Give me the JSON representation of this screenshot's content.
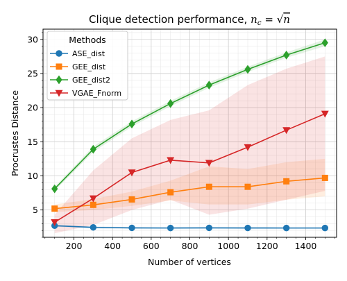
{
  "chart_data": {
    "type": "line",
    "title": "Clique detection performance, ",
    "title_math": {
      "var": "n",
      "sub": "c",
      "eq": " = √",
      "arg": "n"
    },
    "xlabel": "Number of vertices",
    "ylabel": "Procrustes Distance",
    "xlim": [
      40,
      1560
    ],
    "ylim": [
      1.0,
      31.5
    ],
    "x_major_ticks": [
      200,
      400,
      600,
      800,
      1000,
      1200,
      1400
    ],
    "x_tick_labels": [
      "200",
      "400",
      "600",
      "800",
      "1000",
      "1200",
      "1400"
    ],
    "y_major_ticks": [
      5,
      10,
      15,
      20,
      25,
      30
    ],
    "y_tick_labels": [
      "5",
      "10",
      "15",
      "20",
      "25",
      "30"
    ],
    "x_minor_step": 50,
    "y_minor_step": 1,
    "grid": true,
    "legend_title": "Methods",
    "legend_position": "upper-left",
    "x": [
      100,
      300,
      500,
      700,
      900,
      1100,
      1300,
      1500
    ],
    "series": [
      {
        "name": "ASE_dist",
        "color": "#1f77b4",
        "marker": "circle",
        "values": [
          2.7,
          2.45,
          2.38,
          2.36,
          2.38,
          2.37,
          2.36,
          2.36
        ],
        "band_low": [
          2.55,
          2.3,
          2.25,
          2.25,
          2.26,
          2.25,
          2.25,
          2.25
        ],
        "band_high": [
          2.85,
          2.6,
          2.5,
          2.48,
          2.5,
          2.49,
          2.48,
          2.48
        ]
      },
      {
        "name": "GEE_dist",
        "color": "#ff7f0e",
        "marker": "square",
        "values": [
          5.2,
          5.75,
          6.55,
          7.6,
          8.4,
          8.4,
          9.2,
          9.7
        ],
        "band_low": [
          4.7,
          5.0,
          5.6,
          6.4,
          5.8,
          5.8,
          6.5,
          7.0
        ],
        "band_high": [
          5.8,
          6.6,
          7.7,
          9.3,
          11.4,
          11.0,
          12.0,
          12.5
        ]
      },
      {
        "name": "GEE_dist2",
        "color": "#2ca02c",
        "marker": "diamond",
        "values": [
          8.1,
          13.9,
          17.6,
          20.6,
          23.3,
          25.6,
          27.7,
          29.5
        ],
        "band_low": [
          7.8,
          13.5,
          17.2,
          20.2,
          22.9,
          25.2,
          27.3,
          29.0
        ],
        "band_high": [
          8.4,
          14.3,
          18.0,
          21.0,
          23.7,
          26.0,
          28.1,
          30.0
        ]
      },
      {
        "name": "VGAE_Fnorm",
        "color": "#d62728",
        "marker": "triangle-down",
        "values": [
          3.2,
          6.7,
          10.5,
          12.3,
          11.9,
          14.2,
          16.7,
          19.1
        ],
        "band_low": [
          1.6,
          2.8,
          5.0,
          6.5,
          4.3,
          5.2,
          6.5,
          7.8
        ],
        "band_high": [
          4.3,
          10.8,
          15.5,
          18.2,
          19.6,
          23.3,
          25.7,
          27.5
        ]
      }
    ]
  }
}
